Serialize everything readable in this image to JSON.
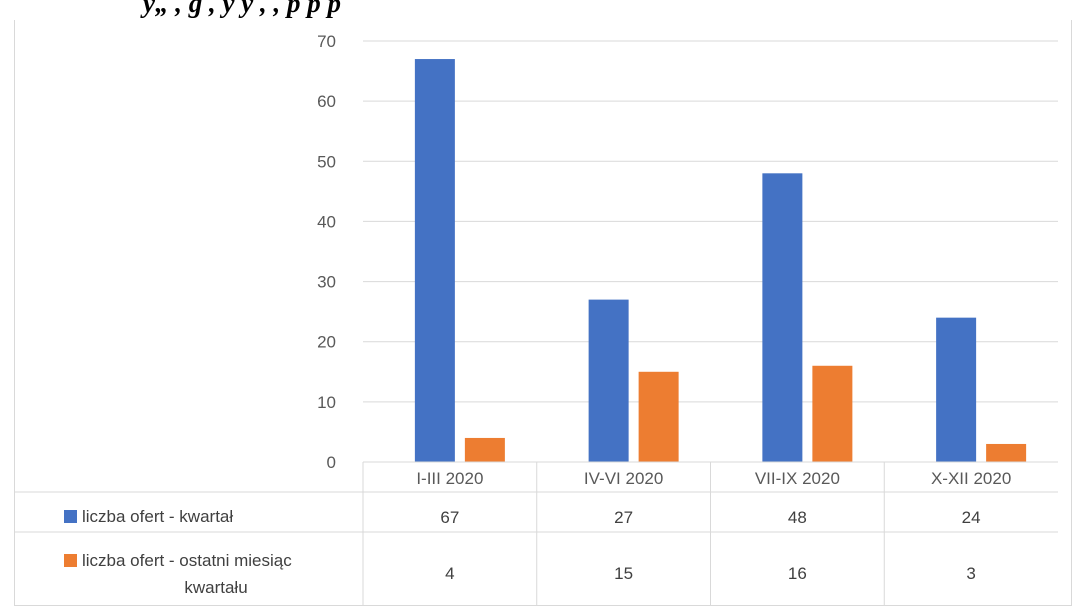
{
  "header_fragment": "y„ , g , y y , , p p p",
  "chart_data": {
    "type": "bar",
    "categories": [
      "I-III 2020",
      "IV-VI 2020",
      "VII-IX 2020",
      "X-XII 2020"
    ],
    "series": [
      {
        "name": "liczba ofert - kwartał",
        "values": [
          67,
          27,
          48,
          24
        ],
        "color": "#4472C4"
      },
      {
        "name": "liczba ofert - ostatni miesiąc kwartału",
        "values": [
          4,
          15,
          16,
          3
        ],
        "color": "#ED7D31"
      }
    ],
    "yticks": [
      0,
      10,
      20,
      30,
      40,
      50,
      60,
      70
    ],
    "ylim": [
      0,
      70
    ],
    "grid": true,
    "legend": "data-table",
    "title": "",
    "xlabel": "",
    "ylabel": ""
  }
}
